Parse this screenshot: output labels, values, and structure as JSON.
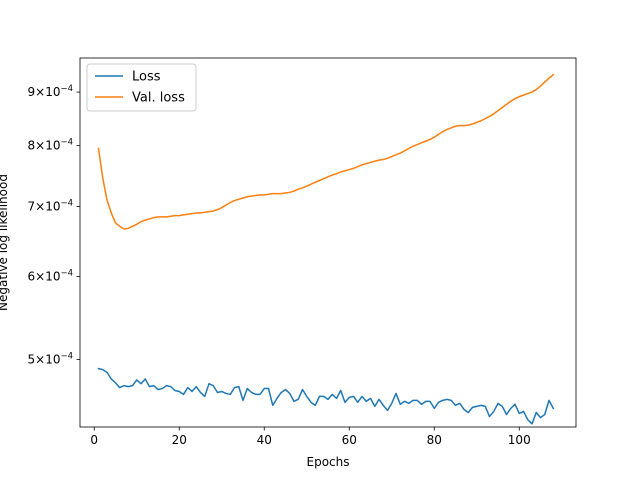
{
  "chart_data": {
    "type": "line",
    "title": "",
    "xlabel": "Epochs",
    "ylabel": "Negative log likelihood",
    "yscale": "log",
    "xlim": [
      -3.35,
      113.35
    ],
    "ylim": [
      0.000431,
      0.00097
    ],
    "grid": false,
    "legend_position": "top-left",
    "x_ticks": [
      0,
      20,
      40,
      60,
      80,
      100
    ],
    "x_tick_labels": [
      "0",
      "20",
      "40",
      "60",
      "80",
      "100"
    ],
    "y_ticks": [
      0.0005,
      0.0006,
      0.0007,
      0.0008,
      0.0009
    ],
    "y_tick_labels": [
      {
        "mant": "5",
        "exp": "−4"
      },
      {
        "mant": "6",
        "exp": "−4"
      },
      {
        "mant": "7",
        "exp": "−4"
      },
      {
        "mant": "8",
        "exp": "−4"
      },
      {
        "mant": "9",
        "exp": "−4"
      }
    ],
    "y_tick_mult": "×10",
    "series": [
      {
        "name": "Loss",
        "color": "#1f77b4",
        "x": [
          1,
          2,
          3,
          4,
          5,
          6,
          7,
          8,
          9,
          10,
          11,
          12,
          13,
          14,
          15,
          16,
          17,
          18,
          19,
          20,
          21,
          22,
          23,
          24,
          25,
          26,
          27,
          28,
          29,
          30,
          31,
          32,
          33,
          34,
          35,
          36,
          37,
          38,
          39,
          40,
          41,
          42,
          43,
          44,
          45,
          46,
          47,
          48,
          49,
          50,
          51,
          52,
          53,
          54,
          55,
          56,
          57,
          58,
          59,
          60,
          61,
          62,
          63,
          64,
          65,
          66,
          67,
          68,
          69,
          70,
          71,
          72,
          73,
          74,
          75,
          76,
          77,
          78,
          79,
          80,
          81,
          82,
          83,
          84,
          85,
          86,
          87,
          88,
          89,
          90,
          91,
          92,
          93,
          94,
          95,
          96,
          97,
          98,
          99,
          100,
          101,
          102,
          103,
          104,
          105,
          106,
          107,
          108
        ],
        "values": [
          0.00049,
          0.000489,
          0.000486,
          0.000479,
          0.000475,
          0.00047,
          0.000472,
          0.000471,
          0.000472,
          0.000478,
          0.000474,
          0.000479,
          0.000471,
          0.000472,
          0.000468,
          0.000469,
          0.000472,
          0.000471,
          0.000467,
          0.000466,
          0.000463,
          0.00047,
          0.000466,
          0.000471,
          0.000465,
          0.000461,
          0.000474,
          0.000472,
          0.000465,
          0.000466,
          0.000464,
          0.000463,
          0.00047,
          0.000471,
          0.000457,
          0.000469,
          0.000465,
          0.000463,
          0.000463,
          0.000469,
          0.000469,
          0.000452,
          0.000459,
          0.000465,
          0.000468,
          0.000464,
          0.000456,
          0.000458,
          0.000468,
          0.000461,
          0.000455,
          0.000452,
          0.000461,
          0.000461,
          0.000458,
          0.000463,
          0.000459,
          0.000467,
          0.000455,
          0.00046,
          0.000461,
          0.000455,
          0.000461,
          0.000456,
          0.000459,
          0.000451,
          0.000458,
          0.000452,
          0.000447,
          0.000454,
          0.000464,
          0.000453,
          0.000456,
          0.000454,
          0.000457,
          0.000457,
          0.000453,
          0.000456,
          0.000456,
          0.000449,
          0.000455,
          0.000457,
          0.000458,
          0.000457,
          0.000452,
          0.000454,
          0.000448,
          0.000445,
          0.00045,
          0.000451,
          0.000452,
          0.000451,
          0.000441,
          0.000446,
          0.000454,
          0.000451,
          0.000443,
          0.000449,
          0.000453,
          0.000444,
          0.000446,
          0.000438,
          0.000434,
          0.000445,
          0.00044,
          0.000443,
          0.000457,
          0.000449
        ]
      },
      {
        "name": "Val. loss",
        "color": "#ff7f0e",
        "x": [
          1,
          2,
          3,
          4,
          5,
          6,
          7,
          8,
          9,
          10,
          11,
          12,
          13,
          14,
          15,
          16,
          17,
          18,
          19,
          20,
          21,
          22,
          23,
          24,
          25,
          26,
          27,
          28,
          29,
          30,
          31,
          32,
          33,
          34,
          35,
          36,
          37,
          38,
          39,
          40,
          41,
          42,
          43,
          44,
          45,
          46,
          47,
          48,
          49,
          50,
          51,
          52,
          53,
          54,
          55,
          56,
          57,
          58,
          59,
          60,
          61,
          62,
          63,
          64,
          65,
          66,
          67,
          68,
          69,
          70,
          71,
          72,
          73,
          74,
          75,
          76,
          77,
          78,
          79,
          80,
          81,
          82,
          83,
          84,
          85,
          86,
          87,
          88,
          89,
          90,
          91,
          92,
          93,
          94,
          95,
          96,
          97,
          98,
          99,
          100,
          101,
          102,
          103,
          104,
          105,
          106,
          107,
          108
        ],
        "values": [
          0.000795,
          0.000745,
          0.00071,
          0.00069,
          0.000675,
          0.00067,
          0.000666,
          0.000667,
          0.00067,
          0.000673,
          0.000677,
          0.000679,
          0.000681,
          0.000683,
          0.000684,
          0.000684,
          0.000684,
          0.000685,
          0.000686,
          0.000686,
          0.000687,
          0.000688,
          0.000689,
          0.00069,
          0.00069,
          0.000691,
          0.000692,
          0.000693,
          0.000695,
          0.000698,
          0.000702,
          0.000706,
          0.000709,
          0.000711,
          0.000713,
          0.000715,
          0.000716,
          0.000717,
          0.000718,
          0.000718,
          0.000719,
          0.00072,
          0.00072,
          0.00072,
          0.000721,
          0.000722,
          0.000724,
          0.000727,
          0.000729,
          0.000732,
          0.000735,
          0.000738,
          0.000741,
          0.000744,
          0.000747,
          0.00075,
          0.000752,
          0.000755,
          0.000757,
          0.000759,
          0.000761,
          0.000764,
          0.000767,
          0.000769,
          0.000771,
          0.000773,
          0.000775,
          0.000776,
          0.000778,
          0.000781,
          0.000784,
          0.000787,
          0.000791,
          0.000795,
          0.000799,
          0.000802,
          0.000805,
          0.000808,
          0.000811,
          0.000815,
          0.00082,
          0.000825,
          0.000829,
          0.000832,
          0.000835,
          0.000836,
          0.000836,
          0.000837,
          0.000839,
          0.000842,
          0.000845,
          0.000849,
          0.000853,
          0.000858,
          0.000864,
          0.00087,
          0.000876,
          0.000882,
          0.000887,
          0.000891,
          0.000894,
          0.000897,
          0.0009,
          0.000905,
          0.000912,
          0.00092,
          0.000928,
          0.000935
        ]
      }
    ]
  }
}
